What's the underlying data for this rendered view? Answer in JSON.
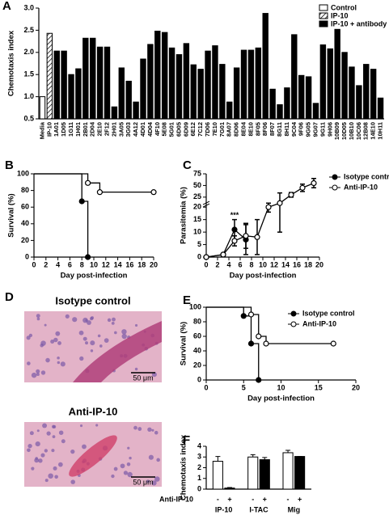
{
  "chart_data": [
    {
      "type": "bar",
      "label": "A",
      "ylabel": "Chemotaxis index",
      "categories": [
        "Media",
        "IP-10",
        "1A01",
        "1D05",
        "1G11",
        "1H01",
        "2B01",
        "2D04",
        "2E10",
        "2F12",
        "2H01",
        "3A05",
        "3G03",
        "4A12",
        "4D01",
        "4D04",
        "4F10",
        "5E08",
        "5G01",
        "6D05",
        "6D09",
        "6E12",
        "7C12",
        "7D06",
        "7E10",
        "7G01",
        "8A07",
        "8D06",
        "8E04",
        "8E10",
        "8F05",
        "8F06",
        "8F07",
        "8G11",
        "8H11",
        "9C04",
        "9F06",
        "9G05",
        "9G07",
        "9G11",
        "9H06",
        "10B09",
        "10D05",
        "10B10",
        "10C06",
        "12B08",
        "14E10",
        "10H11"
      ],
      "series": [
        {
          "name": "Control",
          "color": "#ffffff",
          "values": [
            1.0,
            null,
            null,
            null,
            null,
            null,
            null,
            null,
            null,
            null,
            null,
            null,
            null,
            null,
            null,
            null,
            null,
            null,
            null,
            null,
            null,
            null,
            null,
            null,
            null,
            null,
            null,
            null,
            null,
            null,
            null,
            null,
            null,
            null,
            null,
            null,
            null,
            null,
            null,
            null,
            null,
            null,
            null,
            null,
            null,
            null,
            null,
            null
          ]
        },
        {
          "name": "IP-10",
          "color": "#ffffff",
          "hatch": true,
          "values": [
            null,
            2.43,
            null,
            null,
            null,
            null,
            null,
            null,
            null,
            null,
            null,
            null,
            null,
            null,
            null,
            null,
            null,
            null,
            null,
            null,
            null,
            null,
            null,
            null,
            null,
            null,
            null,
            null,
            null,
            null,
            null,
            null,
            null,
            null,
            null,
            null,
            null,
            null,
            null,
            null,
            null,
            null,
            null,
            null,
            null,
            null,
            null,
            null
          ]
        },
        {
          "name": "IP-10 + antibody",
          "color": "#000000",
          "values": [
            null,
            null,
            2.03,
            2.03,
            1.5,
            1.63,
            2.32,
            2.32,
            2.12,
            2.12,
            0.77,
            1.65,
            1.35,
            0.88,
            1.85,
            2.18,
            2.48,
            2.45,
            2.1,
            1.95,
            2.2,
            1.72,
            1.62,
            2.03,
            2.15,
            1.73,
            0.88,
            1.65,
            2.05,
            2.05,
            2.1,
            2.88,
            1.17,
            0.82,
            1.2,
            2.4,
            1.48,
            1.45,
            0.85,
            2.17,
            2.08,
            2.52,
            2.0,
            1.67,
            1.25,
            1.73,
            1.62,
            0.97
          ]
        }
      ],
      "ylim": [
        0.5,
        3.0
      ],
      "yticks": [
        0.5,
        {
          "value": 1,
          "label": "1.0"
        },
        1.5,
        {
          "value": 2,
          "label": "2.0"
        },
        2.5,
        {
          "value": 3,
          "label": "3.0"
        }
      ],
      "legend": "upper right"
    },
    {
      "type": "line",
      "step": true,
      "label": "B",
      "xlabel": "Day post-infection",
      "ylabel": "Survival (%)",
      "series": [
        {
          "name": "Isotype control",
          "color": "#000000",
          "marker": "filled",
          "x": [
            0,
            8,
            9
          ],
          "values": [
            100,
            67,
            0
          ]
        },
        {
          "name": "Anti-IP-10",
          "color": "#000000",
          "marker": "open",
          "x": [
            0,
            9,
            11,
            20
          ],
          "values": [
            100,
            89,
            78,
            78
          ]
        }
      ],
      "xlim": [
        0,
        20
      ],
      "xticks": [
        0,
        2,
        4,
        6,
        8,
        10,
        12,
        14,
        16,
        18,
        20
      ],
      "ylim": [
        0,
        100
      ],
      "yticks": [
        0,
        20,
        40,
        60,
        80,
        100
      ]
    },
    {
      "type": "line",
      "label": "C",
      "xlabel": "Day post-infection",
      "ylabel": "Parasitemia (%)",
      "series": [
        {
          "name": "Isotype control",
          "color": "#000000",
          "marker": "filled",
          "x": [
            0,
            3,
            5,
            7
          ],
          "values": [
            0,
            1,
            11,
            7
          ],
          "errors": [
            0,
            0.5,
            4,
            6
          ]
        },
        {
          "name": "Anti-IP-10",
          "color": "#000000",
          "marker": "open",
          "x": [
            0,
            3,
            5,
            7,
            9,
            11,
            13,
            15,
            17,
            19
          ],
          "values": [
            0,
            1,
            6.5,
            8.5,
            8,
            20,
            22,
            30,
            45,
            55
          ],
          "errors": [
            0,
            0,
            2,
            5,
            7,
            2,
            12,
            5,
            8,
            10
          ]
        }
      ],
      "xlim": [
        0,
        20
      ],
      "xticks": [
        0,
        2,
        4,
        6,
        8,
        10,
        12,
        14,
        16,
        18,
        20
      ],
      "ylim": [
        0,
        75
      ],
      "yticks": [
        0,
        5,
        10,
        15,
        20,
        25,
        50,
        75
      ],
      "y_break": true,
      "annotations": [
        {
          "text": "***",
          "x": 5
        }
      ],
      "legend": "right"
    },
    {
      "type": "image",
      "label": "D",
      "panels": [
        {
          "title": "Isotype control",
          "scale_bar": "50 μm"
        },
        {
          "title": "Anti-IP-10",
          "scale_bar": "50 μm"
        }
      ]
    },
    {
      "type": "line",
      "step": true,
      "label": "E",
      "xlabel": "Day post-infection",
      "ylabel": "Survival (%)",
      "series": [
        {
          "name": "Isotype control",
          "color": "#000000",
          "marker": "filled",
          "x": [
            0,
            5,
            6,
            7
          ],
          "values": [
            100,
            88,
            50,
            0
          ]
        },
        {
          "name": "Anti-IP-10",
          "color": "#000000",
          "marker": "open",
          "x": [
            0,
            6,
            7,
            8,
            17
          ],
          "values": [
            100,
            90,
            60,
            50,
            50
          ]
        }
      ],
      "xlim": [
        0,
        20
      ],
      "xticks": [
        0,
        5,
        10,
        15,
        20
      ],
      "ylim": [
        0,
        100
      ],
      "yticks": [
        0,
        20,
        40,
        60,
        80,
        100
      ],
      "legend": "upper right"
    },
    {
      "type": "bar",
      "label": "F",
      "ylabel": "Chemotaxis index",
      "row_label": "Anti-IP-10",
      "categories": [
        "IP-10",
        "I-TAC",
        "Mig"
      ],
      "series": [
        {
          "name": "-",
          "color": "#ffffff",
          "values": [
            2.6,
            3.0,
            3.4
          ],
          "errors": [
            0.45,
            0.22,
            0.22
          ]
        },
        {
          "name": "+",
          "color": "#000000",
          "values": [
            0.1,
            2.75,
            3.05
          ],
          "errors": [
            0.05,
            0.2,
            0
          ]
        }
      ],
      "ylim": [
        0,
        4
      ],
      "yticks": [
        0,
        1,
        2,
        3,
        4
      ]
    }
  ]
}
